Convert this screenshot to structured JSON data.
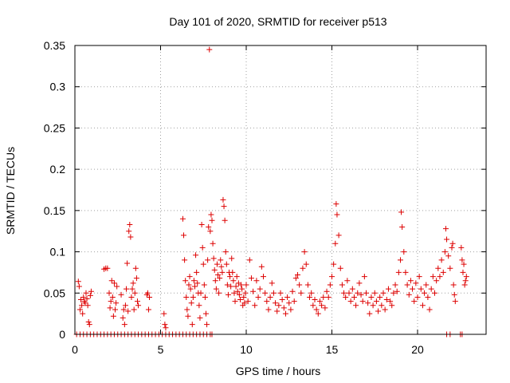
{
  "chart_data": {
    "type": "scatter",
    "title": "Day 101 of 2020, SRMTID for receiver p513",
    "xlabel": "GPS time / hours",
    "ylabel": "SRMTID / TECUs",
    "xlim": [
      0,
      24
    ],
    "ylim": [
      0,
      0.35
    ],
    "grid": true,
    "marker": "+",
    "marker_color": "#dd0000",
    "xticks": [
      {
        "value": 0,
        "label": "0"
      },
      {
        "value": 5,
        "label": "5"
      },
      {
        "value": 10,
        "label": "10"
      },
      {
        "value": 15,
        "label": "15"
      },
      {
        "value": 20,
        "label": "20"
      }
    ],
    "yticks": [
      {
        "value": 0,
        "label": "0"
      },
      {
        "value": 0.05,
        "label": "0.05"
      },
      {
        "value": 0.1,
        "label": "0.1"
      },
      {
        "value": 0.15,
        "label": "0.15"
      },
      {
        "value": 0.2,
        "label": "0.2"
      },
      {
        "value": 0.25,
        "label": "0.25"
      },
      {
        "value": 0.3,
        "label": "0.3"
      },
      {
        "value": 0.35,
        "label": "0.35"
      }
    ],
    "series": [
      {
        "name": "SRMTID",
        "points": [
          [
            0.1,
            0
          ],
          [
            0.3,
            0
          ],
          [
            0.5,
            0
          ],
          [
            0.7,
            0
          ],
          [
            0.9,
            0
          ],
          [
            1.1,
            0
          ],
          [
            1.3,
            0
          ],
          [
            1.5,
            0
          ],
          [
            1.7,
            0
          ],
          [
            1.9,
            0
          ],
          [
            2.1,
            0
          ],
          [
            2.3,
            0
          ],
          [
            2.5,
            0
          ],
          [
            2.7,
            0
          ],
          [
            2.9,
            0
          ],
          [
            3.1,
            0
          ],
          [
            3.3,
            0
          ],
          [
            3.5,
            0
          ],
          [
            3.7,
            0
          ],
          [
            3.9,
            0
          ],
          [
            4.1,
            0
          ],
          [
            4.3,
            0
          ],
          [
            4.5,
            0
          ],
          [
            4.7,
            0
          ],
          [
            4.9,
            0
          ],
          [
            5.1,
            0
          ],
          [
            5.3,
            0
          ],
          [
            5.5,
            0
          ],
          [
            5.7,
            0
          ],
          [
            5.9,
            0
          ],
          [
            6.1,
            0
          ],
          [
            6.3,
            0
          ],
          [
            6.5,
            0
          ],
          [
            6.7,
            0
          ],
          [
            6.9,
            0
          ],
          [
            7.1,
            0
          ],
          [
            7.3,
            0
          ],
          [
            7.5,
            0
          ],
          [
            7.7,
            0
          ],
          [
            7.9,
            0
          ],
          [
            8.0,
            0
          ],
          [
            21.7,
            0
          ],
          [
            21.9,
            0
          ],
          [
            22.5,
            0
          ],
          [
            22.6,
            0
          ],
          [
            0.2,
            0.064
          ],
          [
            0.25,
            0.058
          ],
          [
            0.3,
            0.03
          ],
          [
            0.35,
            0.042
          ],
          [
            0.4,
            0.035
          ],
          [
            0.45,
            0.025
          ],
          [
            0.5,
            0.045
          ],
          [
            0.55,
            0.04
          ],
          [
            0.6,
            0.038
          ],
          [
            0.65,
            0.05
          ],
          [
            0.7,
            0.043
          ],
          [
            0.75,
            0.035
          ],
          [
            0.8,
            0.015
          ],
          [
            0.85,
            0.012
          ],
          [
            0.9,
            0.047
          ],
          [
            0.95,
            0.052
          ],
          [
            1.7,
            0.079
          ],
          [
            1.8,
            0.08
          ],
          [
            1.9,
            0.08
          ],
          [
            2.0,
            0.05
          ],
          [
            2.05,
            0.032
          ],
          [
            2.1,
            0.04
          ],
          [
            2.15,
            0.065
          ],
          [
            2.2,
            0.045
          ],
          [
            2.25,
            0.022
          ],
          [
            2.3,
            0.062
          ],
          [
            2.35,
            0.03
          ],
          [
            2.4,
            0.038
          ],
          [
            2.45,
            0.058
          ],
          [
            2.7,
            0.048
          ],
          [
            2.8,
            0.02
          ],
          [
            2.85,
            0.03
          ],
          [
            2.9,
            0.012
          ],
          [
            2.95,
            0.035
          ],
          [
            3.0,
            0.055
          ],
          [
            3.05,
            0.086
          ],
          [
            3.1,
            0.028
          ],
          [
            3.15,
            0.125
          ],
          [
            3.2,
            0.133
          ],
          [
            3.25,
            0.118
          ],
          [
            3.3,
            0.045
          ],
          [
            3.35,
            0.055
          ],
          [
            3.4,
            0.062
          ],
          [
            3.45,
            0.03
          ],
          [
            3.5,
            0.05
          ],
          [
            3.55,
            0.08
          ],
          [
            3.6,
            0.068
          ],
          [
            3.65,
            0.04
          ],
          [
            3.7,
            0.035
          ],
          [
            4.2,
            0.048
          ],
          [
            4.25,
            0.05
          ],
          [
            4.3,
            0.03
          ],
          [
            4.35,
            0.045
          ],
          [
            5.2,
            0.025
          ],
          [
            5.25,
            0.012
          ],
          [
            5.3,
            0.008
          ],
          [
            6.3,
            0.14
          ],
          [
            6.35,
            0.12
          ],
          [
            6.4,
            0.09
          ],
          [
            6.45,
            0.065
          ],
          [
            6.5,
            0.045
          ],
          [
            6.55,
            0.03
          ],
          [
            6.6,
            0.022
          ],
          [
            6.65,
            0.06
          ],
          [
            6.7,
            0.07
          ],
          [
            6.75,
            0.055
          ],
          [
            6.8,
            0.038
          ],
          [
            6.85,
            0.012
          ],
          [
            6.9,
            0.045
          ],
          [
            6.95,
            0.065
          ],
          [
            7.0,
            0.058
          ],
          [
            7.05,
            0.096
          ],
          [
            7.1,
            0.075
          ],
          [
            7.15,
            0.062
          ],
          [
            7.2,
            0.05
          ],
          [
            7.25,
            0.035
          ],
          [
            7.3,
            0.02
          ],
          [
            7.35,
            0.05
          ],
          [
            7.4,
            0.133
          ],
          [
            7.45,
            0.105
          ],
          [
            7.5,
            0.085
          ],
          [
            7.55,
            0.06
          ],
          [
            7.6,
            0.045
          ],
          [
            7.65,
            0.025
          ],
          [
            7.7,
            0.012
          ],
          [
            7.75,
            0.09
          ],
          [
            7.8,
            0.13
          ],
          [
            7.85,
            0.345
          ],
          [
            7.9,
            0.125
          ],
          [
            7.95,
            0.145
          ],
          [
            8.0,
            0.138
          ],
          [
            8.05,
            0.11
          ],
          [
            8.1,
            0.092
          ],
          [
            8.15,
            0.078
          ],
          [
            8.2,
            0.065
          ],
          [
            8.25,
            0.055
          ],
          [
            8.3,
            0.085
          ],
          [
            8.35,
            0.072
          ],
          [
            8.4,
            0.05
          ],
          [
            8.45,
            0.068
          ],
          [
            8.5,
            0.09
          ],
          [
            8.55,
            0.082
          ],
          [
            8.6,
            0.075
          ],
          [
            8.65,
            0.163
          ],
          [
            8.7,
            0.155
          ],
          [
            8.75,
            0.138
          ],
          [
            8.8,
            0.1
          ],
          [
            8.85,
            0.085
          ],
          [
            8.9,
            0.06
          ],
          [
            8.95,
            0.048
          ],
          [
            9.0,
            0.075
          ],
          [
            9.05,
            0.07
          ],
          [
            9.1,
            0.058
          ],
          [
            9.15,
            0.092
          ],
          [
            9.2,
            0.075
          ],
          [
            9.25,
            0.065
          ],
          [
            9.3,
            0.05
          ],
          [
            9.35,
            0.04
          ],
          [
            9.4,
            0.058
          ],
          [
            9.45,
            0.07
          ],
          [
            9.5,
            0.052
          ],
          [
            9.55,
            0.062
          ],
          [
            9.6,
            0.048
          ],
          [
            9.65,
            0.042
          ],
          [
            9.7,
            0.06
          ],
          [
            9.75,
            0.055
          ],
          [
            9.8,
            0.035
          ],
          [
            9.85,
            0.045
          ],
          [
            9.9,
            0.038
          ],
          [
            9.95,
            0.05
          ],
          [
            10.0,
            0.06
          ],
          [
            10.1,
            0.04
          ],
          [
            10.2,
            0.09
          ],
          [
            10.3,
            0.068
          ],
          [
            10.4,
            0.052
          ],
          [
            10.5,
            0.035
          ],
          [
            10.6,
            0.065
          ],
          [
            10.7,
            0.045
          ],
          [
            10.8,
            0.055
          ],
          [
            10.9,
            0.082
          ],
          [
            11.0,
            0.07
          ],
          [
            11.1,
            0.05
          ],
          [
            11.2,
            0.04
          ],
          [
            11.3,
            0.03
          ],
          [
            11.4,
            0.045
          ],
          [
            11.5,
            0.062
          ],
          [
            11.6,
            0.05
          ],
          [
            11.7,
            0.038
          ],
          [
            11.8,
            0.028
          ],
          [
            11.9,
            0.035
          ],
          [
            12.0,
            0.05
          ],
          [
            12.1,
            0.042
          ],
          [
            12.2,
            0.032
          ],
          [
            12.3,
            0.025
          ],
          [
            12.4,
            0.045
          ],
          [
            12.5,
            0.038
          ],
          [
            12.6,
            0.03
          ],
          [
            12.7,
            0.052
          ],
          [
            12.8,
            0.04
          ],
          [
            12.9,
            0.068
          ],
          [
            13.0,
            0.072
          ],
          [
            13.1,
            0.06
          ],
          [
            13.2,
            0.05
          ],
          [
            13.3,
            0.08
          ],
          [
            13.4,
            0.1
          ],
          [
            13.5,
            0.085
          ],
          [
            13.6,
            0.06
          ],
          [
            13.7,
            0.045
          ],
          [
            13.8,
            0.05
          ],
          [
            13.9,
            0.035
          ],
          [
            14.0,
            0.042
          ],
          [
            14.1,
            0.03
          ],
          [
            14.2,
            0.025
          ],
          [
            14.3,
            0.04
          ],
          [
            14.4,
            0.035
          ],
          [
            14.5,
            0.045
          ],
          [
            14.6,
            0.032
          ],
          [
            14.7,
            0.052
          ],
          [
            14.8,
            0.045
          ],
          [
            14.9,
            0.06
          ],
          [
            15.0,
            0.07
          ],
          [
            15.1,
            0.085
          ],
          [
            15.2,
            0.11
          ],
          [
            15.25,
            0.158
          ],
          [
            15.3,
            0.145
          ],
          [
            15.4,
            0.12
          ],
          [
            15.5,
            0.08
          ],
          [
            15.6,
            0.06
          ],
          [
            15.7,
            0.05
          ],
          [
            15.8,
            0.045
          ],
          [
            15.9,
            0.065
          ],
          [
            16.0,
            0.05
          ],
          [
            16.1,
            0.04
          ],
          [
            16.2,
            0.055
          ],
          [
            16.3,
            0.045
          ],
          [
            16.4,
            0.035
          ],
          [
            16.5,
            0.05
          ],
          [
            16.6,
            0.062
          ],
          [
            16.7,
            0.048
          ],
          [
            16.8,
            0.04
          ],
          [
            16.9,
            0.07
          ],
          [
            17.0,
            0.05
          ],
          [
            17.1,
            0.038
          ],
          [
            17.2,
            0.025
          ],
          [
            17.3,
            0.045
          ],
          [
            17.4,
            0.035
          ],
          [
            17.5,
            0.05
          ],
          [
            17.6,
            0.04
          ],
          [
            17.7,
            0.028
          ],
          [
            17.8,
            0.045
          ],
          [
            17.9,
            0.035
          ],
          [
            18.0,
            0.05
          ],
          [
            18.1,
            0.03
          ],
          [
            18.2,
            0.042
          ],
          [
            18.3,
            0.055
          ],
          [
            18.4,
            0.04
          ],
          [
            18.5,
            0.035
          ],
          [
            18.6,
            0.05
          ],
          [
            18.7,
            0.06
          ],
          [
            18.8,
            0.052
          ],
          [
            18.9,
            0.075
          ],
          [
            19.0,
            0.09
          ],
          [
            19.05,
            0.148
          ],
          [
            19.1,
            0.13
          ],
          [
            19.2,
            0.1
          ],
          [
            19.3,
            0.075
          ],
          [
            19.4,
            0.06
          ],
          [
            19.5,
            0.048
          ],
          [
            19.6,
            0.065
          ],
          [
            19.7,
            0.055
          ],
          [
            19.8,
            0.04
          ],
          [
            19.9,
            0.062
          ],
          [
            20.0,
            0.045
          ],
          [
            20.1,
            0.07
          ],
          [
            20.2,
            0.055
          ],
          [
            20.3,
            0.035
          ],
          [
            20.4,
            0.05
          ],
          [
            20.5,
            0.06
          ],
          [
            20.6,
            0.045
          ],
          [
            20.7,
            0.03
          ],
          [
            20.8,
            0.055
          ],
          [
            20.9,
            0.07
          ],
          [
            21.0,
            0.05
          ],
          [
            21.1,
            0.065
          ],
          [
            21.2,
            0.08
          ],
          [
            21.3,
            0.07
          ],
          [
            21.4,
            0.09
          ],
          [
            21.5,
            0.075
          ],
          [
            21.6,
            0.1
          ],
          [
            21.65,
            0.128
          ],
          [
            21.7,
            0.115
          ],
          [
            21.8,
            0.095
          ],
          [
            21.9,
            0.08
          ],
          [
            22.0,
            0.105
          ],
          [
            22.05,
            0.11
          ],
          [
            22.1,
            0.06
          ],
          [
            22.15,
            0.048
          ],
          [
            22.2,
            0.04
          ],
          [
            22.55,
            0.105
          ],
          [
            22.6,
            0.09
          ],
          [
            22.65,
            0.075
          ],
          [
            22.7,
            0.085
          ],
          [
            22.75,
            0.06
          ],
          [
            22.8,
            0.065
          ],
          [
            22.85,
            0.07
          ]
        ]
      }
    ]
  }
}
